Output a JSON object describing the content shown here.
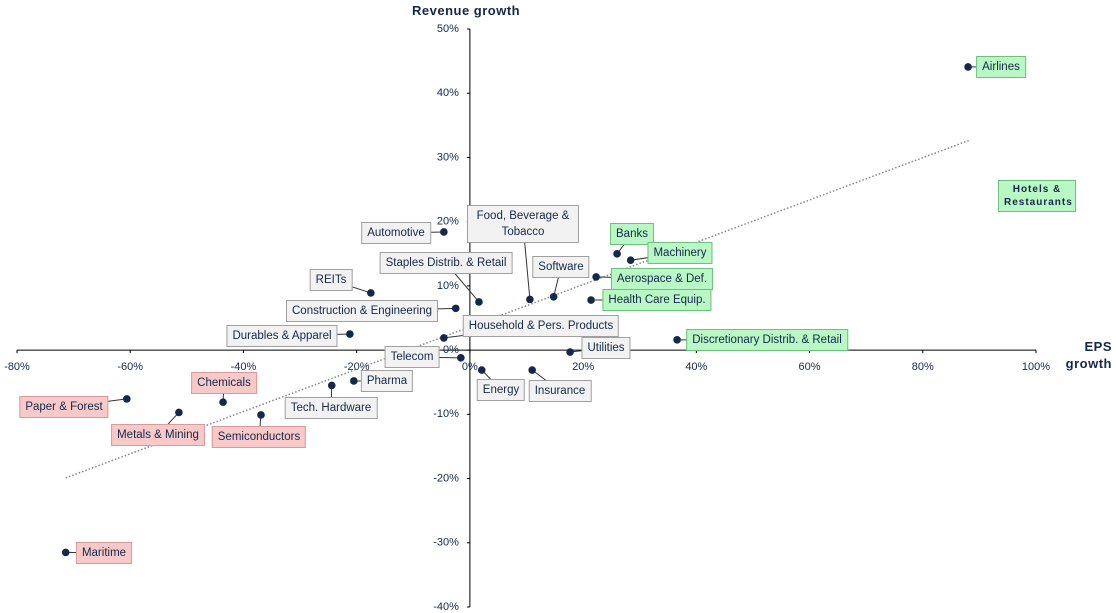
{
  "chart_data": {
    "type": "scatter",
    "x_label": "EPS growth",
    "y_label": "Revenue growth",
    "xlim": [
      -80,
      100
    ],
    "ylim": [
      -40,
      50
    ],
    "xticks": [
      {
        "value": -80,
        "label": "-80%"
      },
      {
        "value": -60,
        "label": "-60%"
      },
      {
        "value": -40,
        "label": "-40%"
      },
      {
        "value": -20,
        "label": "-20%"
      },
      {
        "value": 0,
        "label": "0%"
      },
      {
        "value": 20,
        "label": "20%"
      },
      {
        "value": 40,
        "label": "40%"
      },
      {
        "value": 60,
        "label": "60%"
      },
      {
        "value": 80,
        "label": "80%"
      },
      {
        "value": 100,
        "label": "100%"
      }
    ],
    "yticks": [
      {
        "value": -40,
        "label": "-40%"
      },
      {
        "value": -30,
        "label": "-30%"
      },
      {
        "value": -20,
        "label": "-20%"
      },
      {
        "value": -10,
        "label": "-10%"
      },
      {
        "value": 0,
        "label": "0%"
      },
      {
        "value": 10,
        "label": "10%"
      },
      {
        "value": 20,
        "label": "20%"
      },
      {
        "value": 30,
        "label": "30%"
      },
      {
        "value": 40,
        "label": "40%"
      },
      {
        "value": 50,
        "label": "50%"
      }
    ],
    "marker_color": "#14284b",
    "trendline": {
      "x": [
        -71.4,
        88.3
      ],
      "y": [
        -19.9,
        32.7
      ],
      "color": "#888888"
    },
    "points": [
      {
        "label": "Airlines",
        "x": 88.0,
        "y": 44.1,
        "color": "#b9f7c4"
      },
      {
        "label": "Hotels & Restaurants",
        "x": null,
        "y": null,
        "color": "#b9f7c4"
      },
      {
        "label": "Automotive",
        "x": -4.6,
        "y": 18.4,
        "color": "#f2f2f2"
      },
      {
        "label": "Food, Beverage & Tobacco",
        "x": 10.6,
        "y": 7.9,
        "color": "#f2f2f2"
      },
      {
        "label": "Staples Distrib. & Retail",
        "x": 1.6,
        "y": 7.5,
        "color": "#f2f2f2"
      },
      {
        "label": "Software",
        "x": 14.8,
        "y": 8.3,
        "color": "#f2f2f2"
      },
      {
        "label": "Banks",
        "x": 26.0,
        "y": 15.0,
        "color": "#b9f7c4"
      },
      {
        "label": "Machinery",
        "x": 28.4,
        "y": 14.0,
        "color": "#b9f7c4"
      },
      {
        "label": "Aerospace & Def.",
        "x": 22.3,
        "y": 11.4,
        "color": "#b9f7c4"
      },
      {
        "label": "Health Care Equip.",
        "x": 21.4,
        "y": 7.8,
        "color": "#b9f7c4"
      },
      {
        "label": "REITs",
        "x": -17.5,
        "y": 8.9,
        "color": "#f2f2f2"
      },
      {
        "label": "Construction & Engineering",
        "x": -2.5,
        "y": 6.5,
        "color": "#f2f2f2"
      },
      {
        "label": "Household & Pers. Products",
        "x": -4.6,
        "y": 1.9,
        "color": "#f2f2f2"
      },
      {
        "label": "Durables & Apparel",
        "x": -21.2,
        "y": 2.5,
        "color": "#f2f2f2"
      },
      {
        "label": "Telecom",
        "x": -1.6,
        "y": -1.2,
        "color": "#f2f2f2"
      },
      {
        "label": "Utilities",
        "x": 17.7,
        "y": -0.3,
        "color": "#f2f2f2"
      },
      {
        "label": "Discretionary Distrib. & Retail",
        "x": 36.6,
        "y": 1.6,
        "color": "#b9f7c4"
      },
      {
        "label": "Energy",
        "x": 2.1,
        "y": -3.1,
        "color": "#f2f2f2"
      },
      {
        "label": "Insurance",
        "x": 11.0,
        "y": -3.1,
        "color": "#f2f2f2"
      },
      {
        "label": "Pharma",
        "x": -20.5,
        "y": -4.8,
        "color": "#f2f2f2"
      },
      {
        "label": "Tech. Hardware",
        "x": -24.4,
        "y": -5.5,
        "color": "#f2f2f2"
      },
      {
        "label": "Chemicals",
        "x": -43.6,
        "y": -8.1,
        "color": "#f8c9c9"
      },
      {
        "label": "Paper & Forest",
        "x": -60.6,
        "y": -7.6,
        "color": "#f8c9c9"
      },
      {
        "label": "Metals & Mining",
        "x": -51.4,
        "y": -9.7,
        "color": "#f8c9c9"
      },
      {
        "label": "Semiconductors",
        "x": -36.9,
        "y": -10.1,
        "color": "#f8c9c9"
      },
      {
        "label": "Maritime",
        "x": -71.4,
        "y": -31.5,
        "color": "#f8c9c9"
      }
    ]
  }
}
